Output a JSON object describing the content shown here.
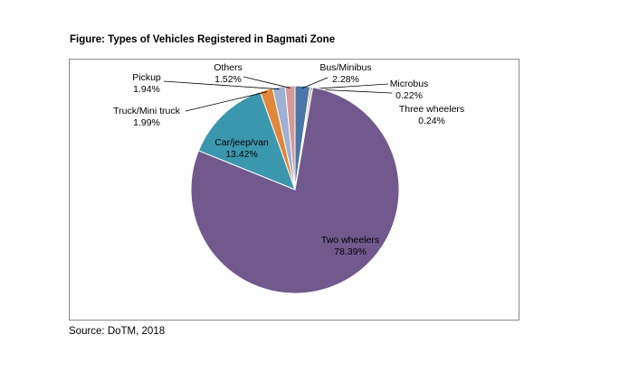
{
  "figure": {
    "title": "Figure: Types of Vehicles Registered in Bagmati Zone",
    "source": "Source: DoTM, 2018"
  },
  "chart_data": {
    "type": "pie",
    "title": "",
    "start_angle_deg": 0,
    "direction": "clockwise",
    "legend": "none",
    "slices": [
      {
        "label": "Bus/Minibus",
        "value": 2.28,
        "value_text": "2.28%",
        "color": "#4a76a8"
      },
      {
        "label": "Microbus",
        "value": 0.22,
        "value_text": "0.22%",
        "color": "#a0522d"
      },
      {
        "label": "Three wheelers",
        "value": 0.24,
        "value_text": "0.24%",
        "color": "#8ea34a"
      },
      {
        "label": "Two wheelers",
        "value": 78.39,
        "value_text": "78.39%",
        "color": "#71598e"
      },
      {
        "label": "Car/jeep/van",
        "value": 13.42,
        "value_text": "13.42%",
        "color": "#3b97ad"
      },
      {
        "label": "Truck/Mini truck",
        "value": 1.99,
        "value_text": "1.99%",
        "color": "#e0873b"
      },
      {
        "label": "Pickup",
        "value": 1.94,
        "value_text": "1.94%",
        "color": "#9eb0d4"
      },
      {
        "label": "Others",
        "value": 1.52,
        "value_text": "1.52%",
        "color": "#d59a97"
      }
    ]
  }
}
